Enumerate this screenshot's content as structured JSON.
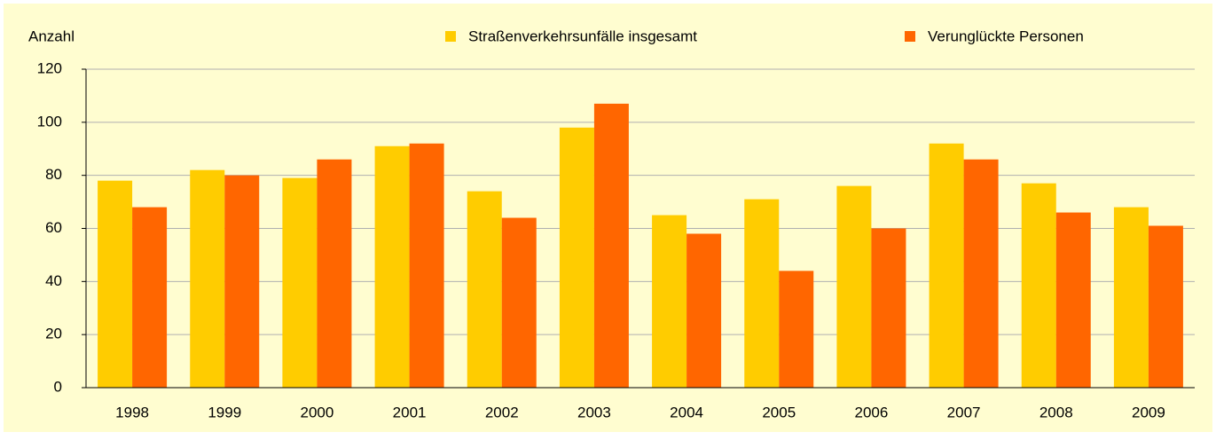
{
  "chart_data": {
    "type": "bar",
    "y_label": "Anzahl",
    "categories": [
      "1998",
      "1999",
      "2000",
      "2001",
      "2002",
      "2003",
      "2004",
      "2005",
      "2006",
      "2007",
      "2008",
      "2009"
    ],
    "series": [
      {
        "name": "Straßenverkehrsunfälle insgesamt",
        "color": "#ffcc00",
        "values": [
          78,
          82,
          79,
          91,
          74,
          98,
          65,
          71,
          76,
          92,
          77,
          68
        ]
      },
      {
        "name": "Verunglückte Personen",
        "color": "#ff6600",
        "values": [
          68,
          80,
          86,
          92,
          64,
          107,
          58,
          44,
          60,
          86,
          66,
          61
        ]
      }
    ],
    "ylim": [
      0,
      120
    ],
    "yticks": [
      0,
      20,
      40,
      60,
      80,
      100,
      120
    ],
    "grid": true,
    "legend": "top"
  }
}
